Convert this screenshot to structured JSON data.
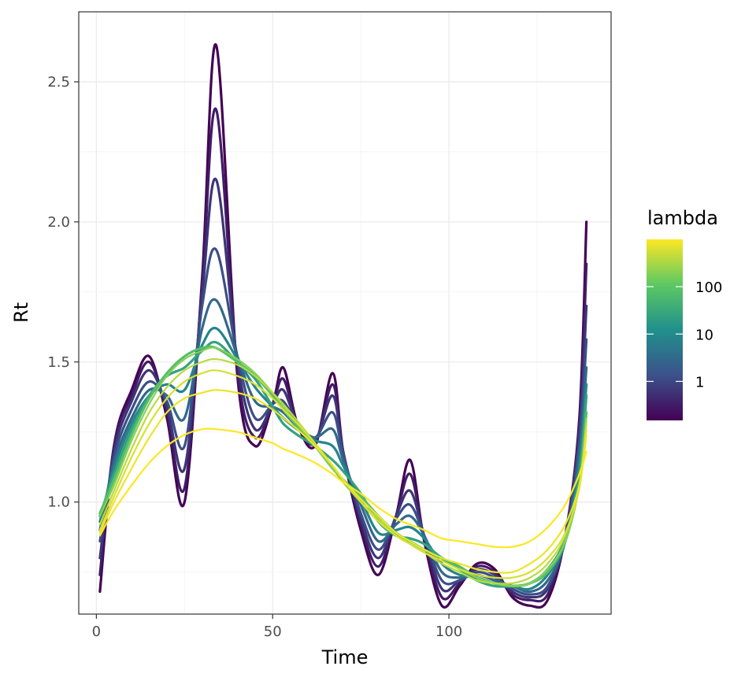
{
  "chart_data": {
    "type": "line",
    "title": "",
    "xlabel": "Time",
    "ylabel": "Rt",
    "xlim": [
      -5,
      146
    ],
    "ylim": [
      0.6,
      2.75
    ],
    "x_ticks": [
      0,
      50,
      100
    ],
    "x_tick_labels": [
      "0",
      "50",
      "100"
    ],
    "y_ticks": [
      1.0,
      1.5,
      2.0,
      2.5
    ],
    "y_tick_labels": [
      "1.0",
      "1.5",
      "2.0",
      "2.5"
    ],
    "grid": true,
    "legend": {
      "title": "lambda",
      "placement": "right",
      "scale": "log",
      "range": [
        0.15,
        1000
      ],
      "ticks": [
        1,
        10,
        100
      ],
      "tick_labels": [
        "1",
        "10",
        "100"
      ],
      "palette": [
        "#440154",
        "#3B528B",
        "#21908C",
        "#5DC863",
        "#FDE725"
      ]
    },
    "x": [
      1,
      5,
      10,
      15,
      20,
      25,
      30,
      34,
      40,
      45,
      50,
      53,
      57,
      62,
      67,
      70,
      75,
      80,
      85,
      89,
      93,
      98,
      103,
      108,
      113,
      118,
      123,
      128,
      133,
      137,
      139
    ],
    "series": [
      {
        "lambda": 0.15,
        "values": [
          0.68,
          1.2,
          1.4,
          1.52,
          1.3,
          1.0,
          1.8,
          2.63,
          1.45,
          1.2,
          1.35,
          1.48,
          1.28,
          1.2,
          1.46,
          1.18,
          0.9,
          0.74,
          0.95,
          1.15,
          0.86,
          0.63,
          0.7,
          0.78,
          0.76,
          0.66,
          0.63,
          0.65,
          0.88,
          1.3,
          2.0
        ]
      },
      {
        "lambda": 0.3,
        "values": [
          0.74,
          1.2,
          1.38,
          1.5,
          1.32,
          1.05,
          1.78,
          2.4,
          1.47,
          1.23,
          1.35,
          1.44,
          1.28,
          1.21,
          1.42,
          1.18,
          0.92,
          0.77,
          0.95,
          1.1,
          0.87,
          0.66,
          0.71,
          0.77,
          0.75,
          0.67,
          0.65,
          0.67,
          0.88,
          1.28,
          1.85
        ]
      },
      {
        "lambda": 0.6,
        "values": [
          0.8,
          1.18,
          1.36,
          1.47,
          1.34,
          1.12,
          1.74,
          2.15,
          1.5,
          1.26,
          1.35,
          1.4,
          1.28,
          1.22,
          1.38,
          1.18,
          0.94,
          0.8,
          0.95,
          1.04,
          0.88,
          0.69,
          0.72,
          0.76,
          0.74,
          0.68,
          0.66,
          0.69,
          0.88,
          1.25,
          1.7
        ]
      },
      {
        "lambda": 1.2,
        "values": [
          0.86,
          1.16,
          1.33,
          1.43,
          1.36,
          1.2,
          1.7,
          1.9,
          1.52,
          1.3,
          1.35,
          1.36,
          1.28,
          1.23,
          1.32,
          1.17,
          0.96,
          0.83,
          0.94,
          0.99,
          0.88,
          0.72,
          0.72,
          0.75,
          0.73,
          0.69,
          0.67,
          0.7,
          0.87,
          1.21,
          1.58
        ]
      },
      {
        "lambda": 3,
        "values": [
          0.9,
          1.14,
          1.3,
          1.4,
          1.38,
          1.3,
          1.62,
          1.72,
          1.52,
          1.36,
          1.34,
          1.32,
          1.27,
          1.23,
          1.26,
          1.15,
          0.99,
          0.86,
          0.92,
          0.95,
          0.88,
          0.75,
          0.73,
          0.74,
          0.72,
          0.7,
          0.68,
          0.72,
          0.86,
          1.17,
          1.48
        ]
      },
      {
        "lambda": 8,
        "values": [
          0.93,
          1.12,
          1.28,
          1.38,
          1.42,
          1.4,
          1.56,
          1.62,
          1.51,
          1.41,
          1.34,
          1.3,
          1.26,
          1.22,
          1.2,
          1.13,
          1.01,
          0.89,
          0.9,
          0.91,
          0.87,
          0.78,
          0.74,
          0.73,
          0.71,
          0.7,
          0.69,
          0.74,
          0.86,
          1.13,
          1.42
        ]
      },
      {
        "lambda": 25,
        "values": [
          0.95,
          1.1,
          1.26,
          1.38,
          1.45,
          1.48,
          1.54,
          1.57,
          1.5,
          1.44,
          1.34,
          1.28,
          1.24,
          1.2,
          1.15,
          1.11,
          1.03,
          0.93,
          0.88,
          0.87,
          0.85,
          0.8,
          0.76,
          0.72,
          0.7,
          0.7,
          0.71,
          0.76,
          0.87,
          1.1,
          1.38
        ]
      },
      {
        "lambda": 80,
        "values": [
          0.96,
          1.08,
          1.24,
          1.37,
          1.46,
          1.52,
          1.55,
          1.55,
          1.5,
          1.45,
          1.38,
          1.33,
          1.27,
          1.2,
          1.12,
          1.08,
          1.02,
          0.95,
          0.89,
          0.86,
          0.83,
          0.8,
          0.77,
          0.73,
          0.71,
          0.7,
          0.71,
          0.75,
          0.86,
          1.07,
          1.32
        ]
      },
      {
        "lambda": 200,
        "values": [
          0.95,
          1.06,
          1.22,
          1.35,
          1.45,
          1.51,
          1.54,
          1.55,
          1.51,
          1.46,
          1.39,
          1.34,
          1.28,
          1.2,
          1.12,
          1.07,
          1.0,
          0.94,
          0.89,
          0.85,
          0.82,
          0.79,
          0.76,
          0.73,
          0.71,
          0.7,
          0.71,
          0.76,
          0.86,
          1.06,
          1.3
        ]
      },
      {
        "lambda": 400,
        "values": [
          0.92,
          1.04,
          1.19,
          1.32,
          1.41,
          1.47,
          1.5,
          1.51,
          1.49,
          1.45,
          1.39,
          1.35,
          1.29,
          1.21,
          1.13,
          1.08,
          1.0,
          0.94,
          0.88,
          0.85,
          0.82,
          0.78,
          0.75,
          0.72,
          0.71,
          0.71,
          0.73,
          0.78,
          0.88,
          1.06,
          1.28
        ]
      },
      {
        "lambda": 600,
        "values": [
          0.9,
          1.02,
          1.16,
          1.28,
          1.37,
          1.43,
          1.46,
          1.47,
          1.45,
          1.42,
          1.37,
          1.33,
          1.28,
          1.21,
          1.13,
          1.08,
          1.0,
          0.93,
          0.88,
          0.85,
          0.82,
          0.79,
          0.76,
          0.74,
          0.73,
          0.73,
          0.75,
          0.8,
          0.89,
          1.05,
          1.26
        ]
      },
      {
        "lambda": 800,
        "values": [
          0.89,
          1.0,
          1.12,
          1.23,
          1.32,
          1.37,
          1.39,
          1.4,
          1.39,
          1.37,
          1.33,
          1.3,
          1.26,
          1.2,
          1.13,
          1.08,
          1.01,
          0.95,
          0.89,
          0.86,
          0.83,
          0.8,
          0.78,
          0.76,
          0.75,
          0.75,
          0.78,
          0.83,
          0.92,
          1.06,
          1.24
        ]
      },
      {
        "lambda": 1000,
        "values": [
          0.88,
          0.97,
          1.06,
          1.14,
          1.2,
          1.24,
          1.26,
          1.26,
          1.25,
          1.23,
          1.21,
          1.19,
          1.17,
          1.14,
          1.1,
          1.07,
          1.03,
          0.98,
          0.94,
          0.92,
          0.9,
          0.87,
          0.86,
          0.85,
          0.84,
          0.84,
          0.86,
          0.91,
          0.99,
          1.1,
          1.18
        ]
      }
    ]
  }
}
